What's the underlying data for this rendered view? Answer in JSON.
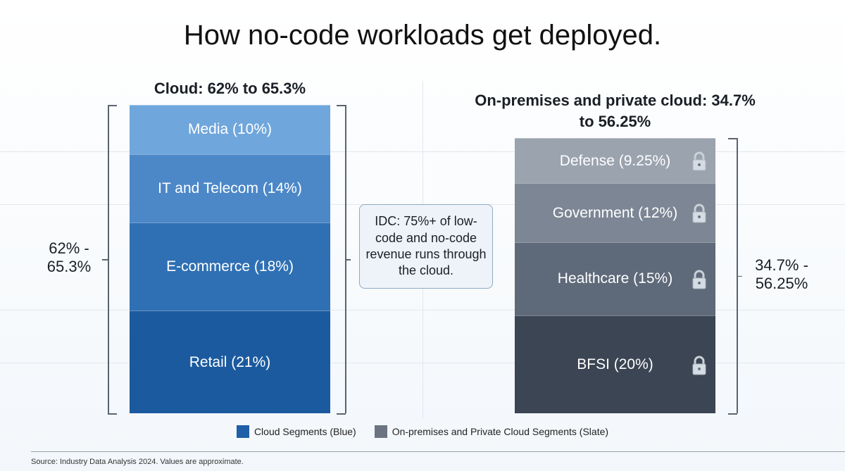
{
  "chart_data": {
    "type": "stacked-bar",
    "title": "How no-code workloads get deployed.",
    "groups": [
      {
        "header": "Cloud: 62% to 65.3%",
        "range_label": "62% - 65.3%",
        "segments": [
          {
            "label": "Retail (21%)",
            "value": 21,
            "color": "#1b5a9f"
          },
          {
            "label": "E-commerce (18%)",
            "value": 18,
            "color": "#2f70b4"
          },
          {
            "label": "IT and Telecom (14%)",
            "value": 14,
            "color": "#4c88c8"
          },
          {
            "label": "Media (10%)",
            "value": 10,
            "color": "#6fa6dc"
          }
        ]
      },
      {
        "header": "On-premises and private cloud: 34.7% to 56.25%",
        "range_label": "34.7% - 56.25%",
        "segments": [
          {
            "label": "BFSI (20%)",
            "value": 20,
            "color": "#3b4553"
          },
          {
            "label": "Healthcare (15%)",
            "value": 15,
            "color": "#5e6979"
          },
          {
            "label": "Government (12%)",
            "value": 12,
            "color": "#7c8694"
          },
          {
            "label": "Defense (9.25%)",
            "value": 9.25,
            "color": "#9aa3ae"
          }
        ]
      }
    ],
    "annotation": "IDC: 75%+ of low-code and no-code revenue runs through the cloud.",
    "legend": [
      {
        "name": "Cloud Segments (Blue)",
        "color": "#1f5fa8"
      },
      {
        "name": "On-premises and Private Cloud Segments (Slate)",
        "color": "#6b7480"
      }
    ],
    "source": "Source: Industry Data Analysis 2024. Values are approximate."
  }
}
